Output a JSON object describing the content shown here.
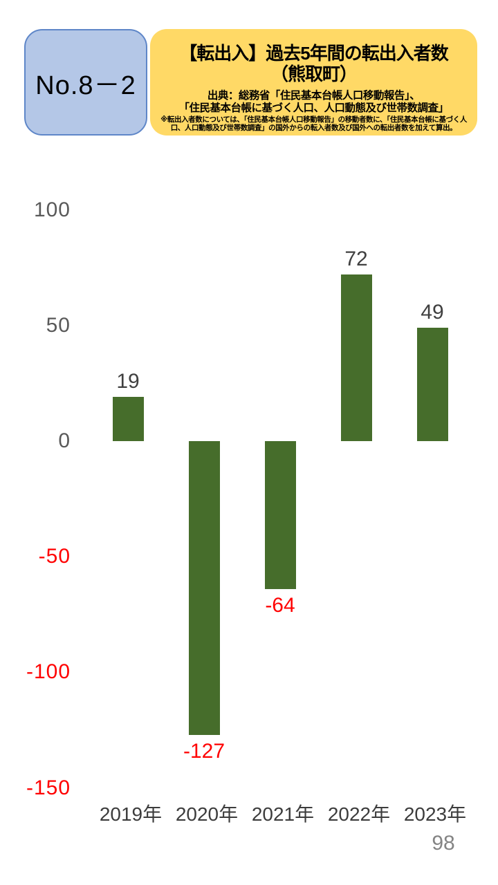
{
  "page": {
    "number": "98"
  },
  "header": {
    "badge": {
      "label": "No.8－2",
      "fill": "#B4C7E7",
      "border": "#5E86C8"
    },
    "title_box": {
      "fill": "#FFD966",
      "title_line1": "【転出入】過去5年間の転出入者数",
      "title_line2": "（熊取町）",
      "source_line1": "出典：総務省「住民基本台帳人口移動報告」、",
      "source_line2": "「住民基本台帳に基づく人口、人口動態及び世帯数調査」",
      "note_line1": "※転出入者数については、「住民基本台帳人口移動報告」の移動者数に、「住民基本台帳に基づく人",
      "note_line2": "口、人口動態及び世帯数調査」の国外からの転入者数及び国外への転出者数を加えて算出。"
    }
  },
  "chart_data": {
    "type": "bar",
    "categories": [
      "2019年",
      "2020年",
      "2021年",
      "2022年",
      "2023年"
    ],
    "values": [
      19,
      -127,
      -64,
      72,
      49
    ],
    "data_labels": [
      "19",
      "-127",
      "-64",
      "72",
      "49"
    ],
    "yticks": [
      100,
      50,
      0,
      -50,
      -100,
      -150
    ],
    "ylim": [
      -150,
      100
    ],
    "grid": false,
    "legend": false,
    "title": "",
    "xlabel": "",
    "ylabel": "",
    "bar_color": "#466D2B",
    "tick_color_positive": "#595959",
    "tick_color_negative": "#FF0000",
    "label_color_positive": "#404040",
    "label_color_negative": "#FF0000",
    "category_color": "#3C3C3C"
  }
}
